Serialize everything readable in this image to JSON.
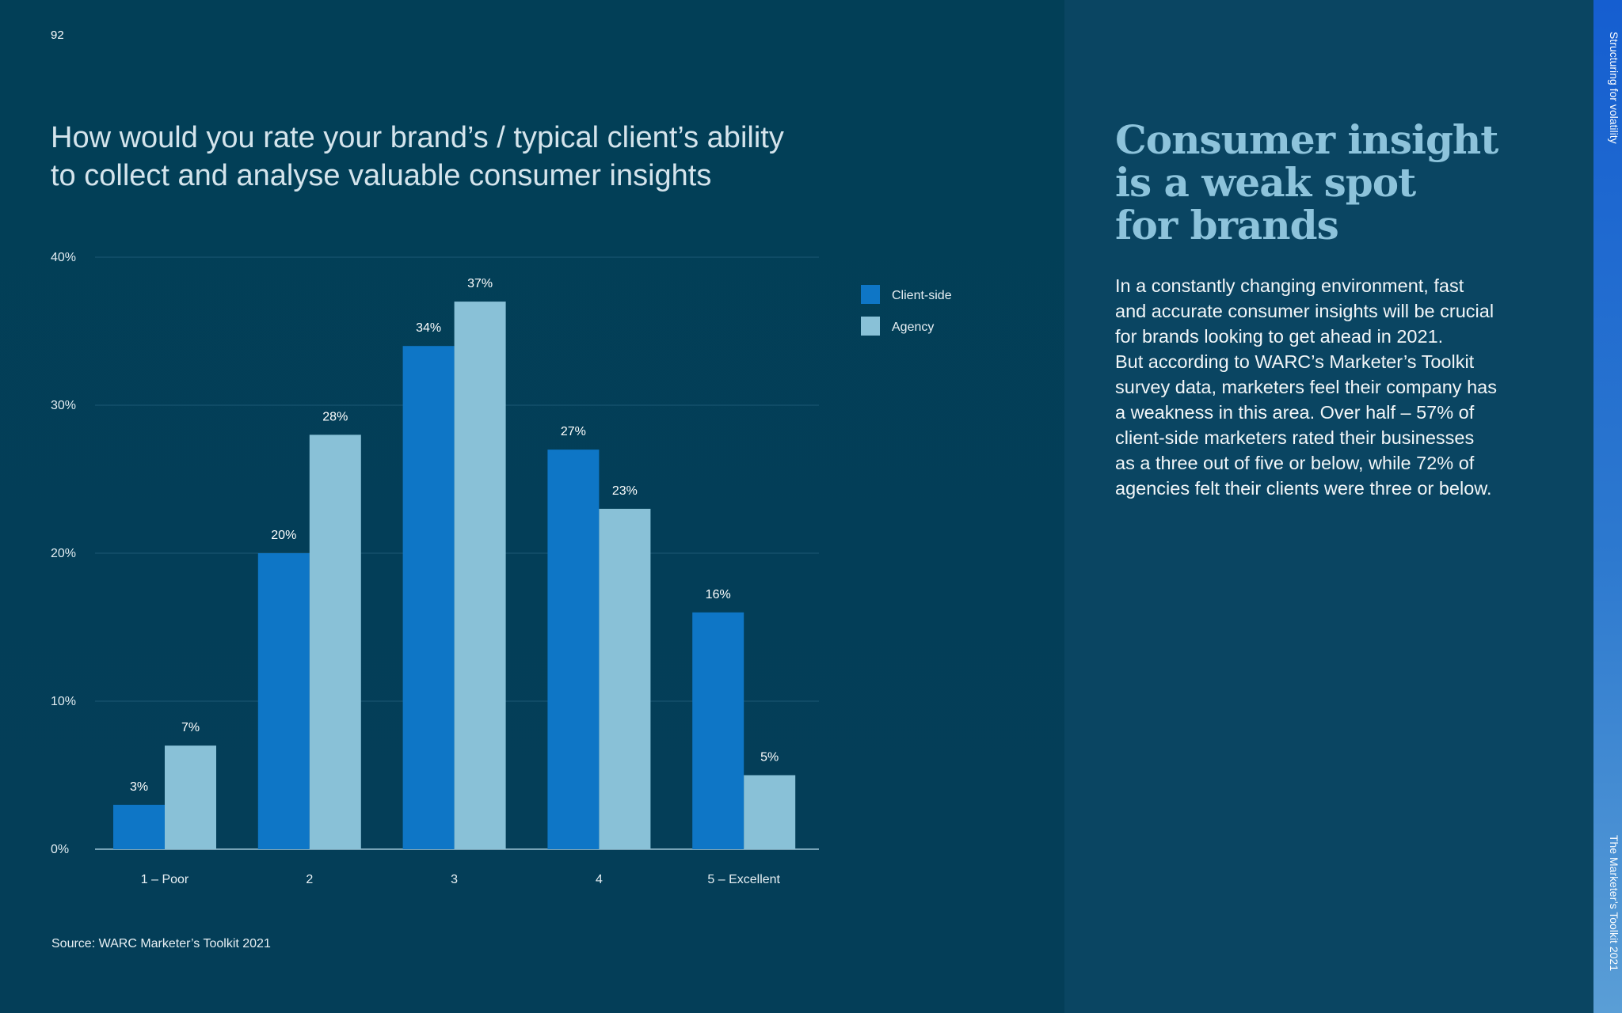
{
  "page": {
    "number": "92",
    "section_label": "Structuring for volatility",
    "publication_label": "The Marketer’s Toolkit 2021"
  },
  "colors": {
    "client_side": "#0e76c6",
    "agency": "#89c1d7",
    "headline": "#8dc3db"
  },
  "chart": {
    "title_line1": "How would you rate your brand’s / typical client’s ability",
    "title_line2": "to collect and analyse valuable consumer insights",
    "source": "Source: WARC Marketer’s Toolkit 2021"
  },
  "chart_data": {
    "type": "bar",
    "title": "How would you rate your brand’s / typical client’s ability to collect and analyse valuable consumer insights",
    "categories": [
      "1 – Poor",
      "2",
      "3",
      "4",
      "5 – Excellent"
    ],
    "series": [
      {
        "name": "Client-side",
        "values": [
          3,
          20,
          34,
          27,
          16
        ],
        "labels": [
          "3%",
          "20%",
          "34%",
          "27%",
          "16%"
        ]
      },
      {
        "name": "Agency",
        "values": [
          7,
          28,
          37,
          23,
          5
        ],
        "labels": [
          "7%",
          "28%",
          "37%",
          "23%",
          "5%"
        ]
      }
    ],
    "yticks": [
      "0%",
      "10%",
      "20%",
      "30%",
      "40%"
    ],
    "ylim": [
      0,
      40
    ],
    "xlabel": "",
    "ylabel": "",
    "grid": true,
    "legend": "right"
  },
  "insight": {
    "headline": [
      "Consumer insight",
      "is a weak spot",
      "for brands"
    ],
    "body": [
      "In a constantly changing environment, fast",
      "and accurate consumer insights will be crucial",
      "for brands looking to get ahead in 2021.",
      "But according to WARC’s Marketer’s Toolkit",
      "survey data, marketers feel their company has",
      "a weakness in this area. Over half – 57% of",
      "client-side marketers rated their businesses",
      "as a three out of five or below, while 72% of",
      "agencies felt their clients were three or below."
    ]
  }
}
